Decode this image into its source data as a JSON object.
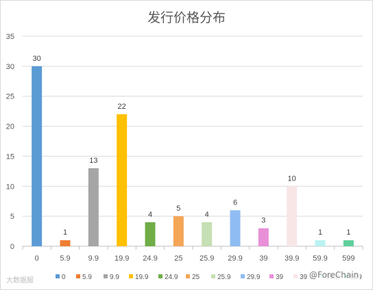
{
  "chart_data": {
    "type": "bar",
    "title": "发行价格分布",
    "categories": [
      "0",
      "5.9",
      "9.9",
      "19.9",
      "24.9",
      "25",
      "25.9",
      "29.9",
      "39",
      "39.9",
      "59.9",
      "599"
    ],
    "values": [
      30,
      1,
      13,
      22,
      4,
      5,
      4,
      6,
      3,
      10,
      1,
      1
    ],
    "colors": [
      "#5b9bd5",
      "#ed7d31",
      "#a5a5a5",
      "#ffc000",
      "#70ad47",
      "#f4a556",
      "#c5e0b4",
      "#8fbcf2",
      "#e88fd8",
      "#f8e6e6",
      "#b9f2f2",
      "#5fcf9a"
    ],
    "ylim": [
      0,
      35
    ],
    "yticks": [
      0,
      5,
      10,
      15,
      20,
      25,
      30,
      35
    ],
    "grid": true,
    "legend": "bottom",
    "show_data_labels": true
  },
  "watermark": {
    "left": "大数据服",
    "right": "@ForeChain"
  }
}
